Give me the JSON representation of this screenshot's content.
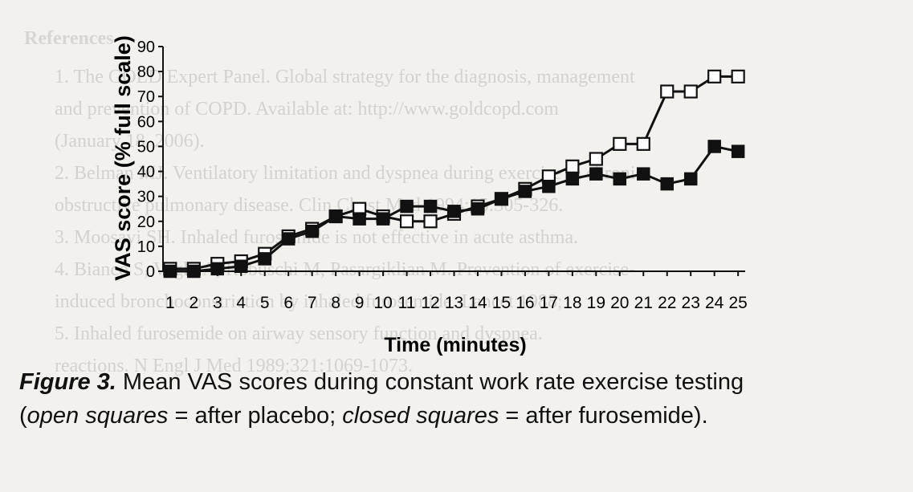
{
  "page": {
    "background_color": "#f2f1ee",
    "ghost_text": {
      "heading": "References",
      "lines": [
        "1. The GOLD Expert Panel. Global strategy for the diagnosis, management",
        "and prevention of COPD. Available at: http://www.goldcopd.com",
        "(January 18, 2006).",
        "2. Belman MJ. Ventilatory limitation and dyspnea during exercise in chronic",
        "obstructive pulmonary disease. Clin Chest Med 1994;15:305-326.",
        "3. Moosavi SH. Inhaled furosemide is not effective in acute asthma.",
        "4. Bianco S, Vaghi A, Robuschi M, Pasargiklian M. Prevention of exercise-",
        "induced bronchoconstriction by inhaled furosemide. Lancet 1988;",
        "5. Inhaled furosemide on airway sensory function and dyspnea.",
        "reactions. N Engl J Med 1989;321:1069-1073."
      ]
    }
  },
  "caption": {
    "label": "Figure 3.",
    "line1_text": " Mean VAS scores during constant work rate exercise testing",
    "line2_open": "(",
    "open_term": "open squares",
    "line2_mid": " = after placebo; ",
    "closed_term": "closed squares",
    "line2_end": " = after furosemide)."
  },
  "chart_data": {
    "type": "line",
    "xlabel": "Time (minutes)",
    "ylabel": "VAS score (% full scale)",
    "x": [
      1,
      2,
      3,
      4,
      5,
      6,
      7,
      8,
      9,
      10,
      11,
      12,
      13,
      14,
      15,
      16,
      17,
      18,
      19,
      20,
      21,
      22,
      23,
      24,
      25
    ],
    "xlim": [
      0.7,
      25.3
    ],
    "ylim": [
      0,
      90
    ],
    "yticks": [
      0,
      10,
      20,
      30,
      40,
      50,
      60,
      70,
      80,
      90
    ],
    "grid": false,
    "legend": "none",
    "series": [
      {
        "marker": "open-square",
        "color": "#111111",
        "values": [
          1,
          1,
          3,
          4,
          7,
          14,
          17,
          22,
          25,
          22,
          20,
          20,
          23,
          26,
          29,
          33,
          38,
          42,
          45,
          51,
          51,
          72,
          72,
          78,
          78
        ]
      },
      {
        "marker": "filled-square",
        "color": "#111111",
        "values": [
          0,
          0,
          1,
          2,
          5,
          13,
          16,
          22,
          21,
          21,
          26,
          26,
          24,
          25,
          29,
          32,
          34,
          37,
          39,
          37,
          39,
          35,
          37,
          50,
          48
        ]
      }
    ]
  }
}
